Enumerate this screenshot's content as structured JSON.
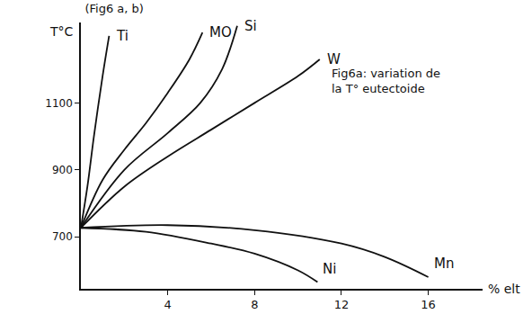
{
  "chart_data": {
    "type": "line",
    "title": "(Fig6 a, b)",
    "annotation": "Fig6a: variation de la T° eutectoide",
    "x_label": "% elt",
    "y_label": "T°C",
    "xlim": [
      0,
      18.5
    ],
    "ylim": [
      545,
      1340
    ],
    "xticks": [
      4,
      8,
      12,
      16
    ],
    "yticks": [
      700,
      900,
      1100
    ],
    "grid": false,
    "color": "#111111",
    "series": [
      {
        "name": "Ti",
        "x": [
          0,
          0.3,
          0.6,
          1.0,
          1.3
        ],
        "values": [
          727,
          850,
          1000,
          1180,
          1300
        ]
      },
      {
        "name": "MO",
        "x": [
          0,
          1,
          2,
          3,
          4,
          5,
          5.6
        ],
        "values": [
          727,
          870,
          960,
          1040,
          1130,
          1230,
          1310
        ]
      },
      {
        "name": "Si",
        "x": [
          0,
          2,
          4,
          5.5,
          6.5,
          7.2
        ],
        "values": [
          727,
          900,
          1010,
          1100,
          1200,
          1330
        ]
      },
      {
        "name": "W",
        "x": [
          0,
          2,
          4,
          6,
          8,
          10,
          11
        ],
        "values": [
          727,
          850,
          940,
          1020,
          1100,
          1180,
          1230
        ]
      },
      {
        "name": "Ni",
        "x": [
          0,
          3,
          6,
          8,
          10,
          10.9
        ],
        "values": [
          727,
          715,
          680,
          650,
          600,
          565
        ]
      },
      {
        "name": "Mn",
        "x": [
          0,
          4,
          8,
          12,
          14,
          16
        ],
        "values": [
          727,
          735,
          720,
          680,
          640,
          580
        ]
      }
    ]
  }
}
